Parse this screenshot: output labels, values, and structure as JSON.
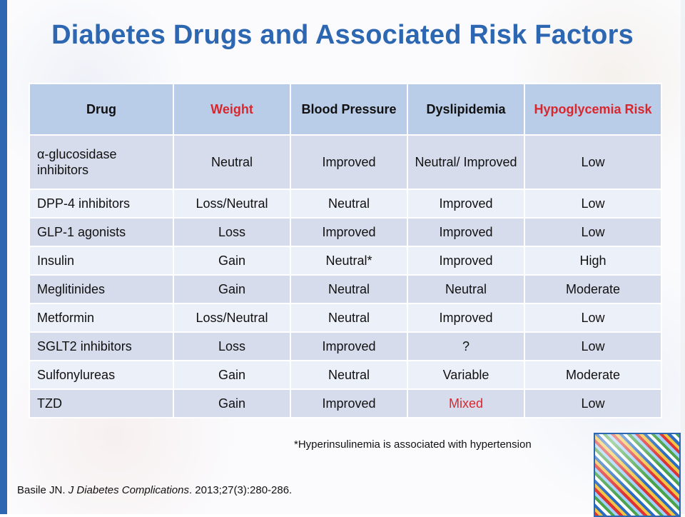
{
  "title": "Diabetes Drugs and Associated Risk Factors",
  "table": {
    "headers": [
      "Drug",
      "Weight",
      "Blood Pressure",
      "Dyslipidemia",
      "Hypoglycemia Risk"
    ],
    "header_colors": [
      "#111111",
      "#d9272e",
      "#111111",
      "#111111",
      "#d9272e"
    ],
    "rows": [
      [
        "α-glucosidase inhibitors",
        "Neutral",
        "Improved",
        "Neutral/ Improved",
        "Low"
      ],
      [
        "DPP-4 inhibitors",
        "Loss/Neutral",
        "Neutral",
        "Improved",
        "Low"
      ],
      [
        "GLP-1 agonists",
        "Loss",
        "Improved",
        "Improved",
        "Low"
      ],
      [
        "Insulin",
        "Gain",
        "Neutral*",
        "Improved",
        "High"
      ],
      [
        "Meglitinides",
        "Gain",
        "Neutral",
        "Neutral",
        "Moderate"
      ],
      [
        "Metformin",
        "Loss/Neutral",
        "Neutral",
        "Improved",
        "Low"
      ],
      [
        "SGLT2 inhibitors",
        "Loss",
        "Improved",
        "?",
        "Low"
      ],
      [
        "Sulfonylureas",
        "Gain",
        "Neutral",
        "Variable",
        "Moderate"
      ],
      [
        "TZD",
        "Gain",
        "Improved",
        "Mixed",
        "Low"
      ]
    ]
  },
  "footnote": "*Hyperinsulinemia is associated with hypertension",
  "citation": {
    "author": "Basile JN.",
    "journal": "J Diabetes Complications",
    "details": ". 2013;27(3):280-286."
  },
  "colors": {
    "accent": "#2e67b1",
    "header_bg": "#b9cde8",
    "row_dark": "#d6dcec",
    "row_light": "#ecf0f8",
    "highlight_red": "#d9272e"
  }
}
